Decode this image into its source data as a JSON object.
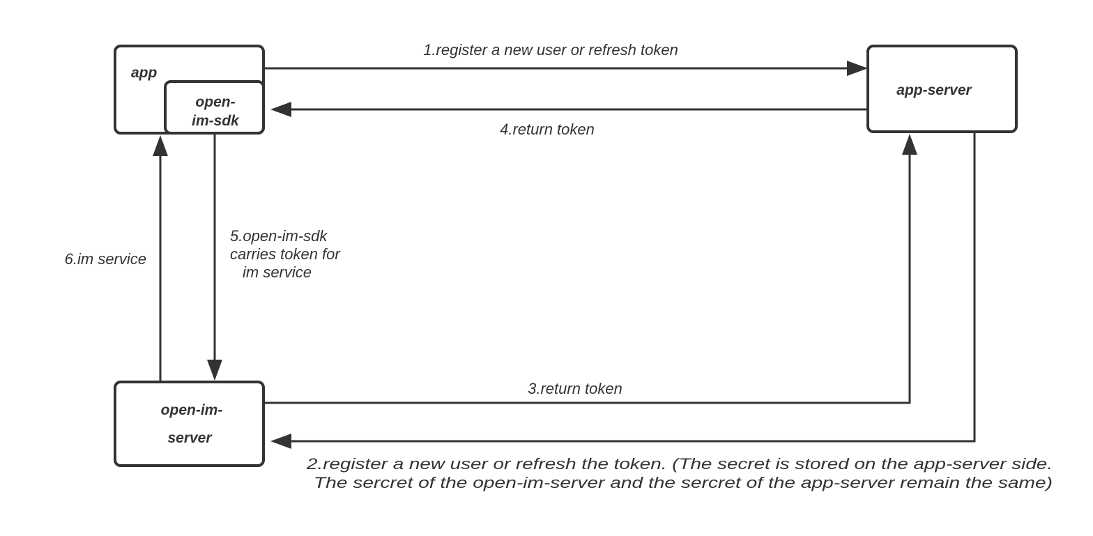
{
  "nodes": {
    "app": "app",
    "sdk_line1": "open-",
    "sdk_line2": "im-sdk",
    "app_server": "app-server",
    "im_server_line1": "open-im-",
    "im_server_line2": "server"
  },
  "edges": {
    "e1": "1.register a new user or refresh token",
    "e2_line1": "2.register a new user or refresh the token. (The secret is stored on the app-server side.",
    "e2_line2": "The sercret of the open-im-server and the sercret of the app-server remain the same)",
    "e3": "3.return token",
    "e4": "4.return token",
    "e5_line1": "5.open-im-sdk",
    "e5_line2": "carries token for",
    "e5_line3": "im service",
    "e6": "6.im service"
  },
  "colors": {
    "stroke": "#333333",
    "background": "#ffffff"
  }
}
